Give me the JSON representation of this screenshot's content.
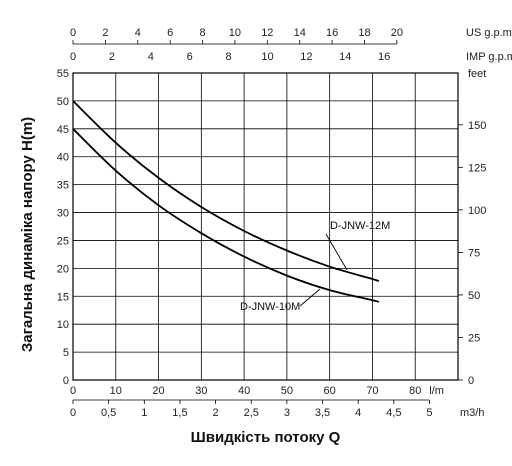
{
  "chart_data": {
    "type": "line",
    "ylabel": "Загальна динаміка напору H(m)",
    "xlabel": "Швидкість потоку Q",
    "ylim": [
      0,
      55
    ],
    "grid": true,
    "y_ticks": [
      0,
      5,
      10,
      15,
      20,
      25,
      30,
      35,
      40,
      45,
      50,
      55
    ],
    "feet_axis": {
      "unit": "feet",
      "ticks": [
        0,
        25,
        50,
        75,
        100,
        125,
        150
      ]
    },
    "lpm_axis": {
      "unit": "l/m",
      "range": [
        0,
        90
      ],
      "ticks": [
        0,
        10,
        20,
        30,
        40,
        50,
        60,
        70,
        80
      ]
    },
    "m3h_axis": {
      "unit": "m3/h",
      "ticks": [
        "0",
        "0,5",
        "1",
        "1,5",
        "2",
        "2,5",
        "3",
        "3,5",
        "4",
        "4,5",
        "5"
      ]
    },
    "usgpm_axis": {
      "unit": "US g.p.m",
      "ticks": [
        0,
        2,
        4,
        6,
        8,
        10,
        12,
        14,
        16,
        18,
        20
      ]
    },
    "impgpm_axis": {
      "unit": "IMP g.p.m",
      "ticks": [
        0,
        2,
        4,
        6,
        8,
        10,
        12,
        14,
        16
      ]
    },
    "series": [
      {
        "name": "D-JNW-12M",
        "x": [
          0,
          10,
          20,
          30,
          40,
          50,
          60,
          70,
          71.5
        ],
        "y": [
          50,
          42.5,
          36.2,
          31,
          26.7,
          23.2,
          20.3,
          18.1,
          17.7
        ]
      },
      {
        "name": "D-JNW-10M",
        "x": [
          0,
          10,
          20,
          30,
          40,
          50,
          60,
          70,
          71.5
        ],
        "y": [
          45,
          37.5,
          31.3,
          26.3,
          22.1,
          18.7,
          16.1,
          14.3,
          14
        ]
      }
    ]
  }
}
